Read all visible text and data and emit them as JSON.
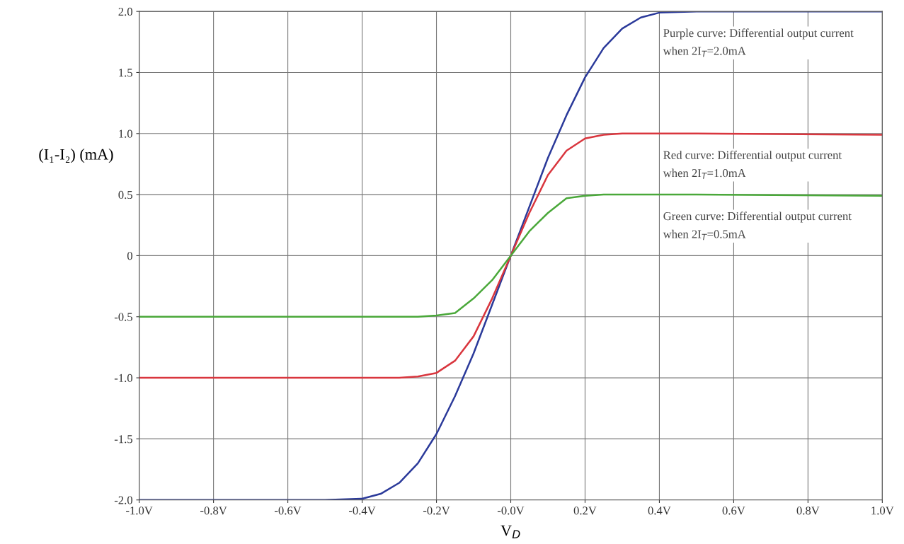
{
  "chart_data": {
    "type": "line",
    "xlabel": "V$_{D}$",
    "ylabel": "(I₁-I₂) (mA)",
    "x": [
      -1.0,
      -0.5,
      -0.4,
      -0.35,
      -0.3,
      -0.25,
      -0.2,
      -0.15,
      -0.1,
      -0.05,
      0.0,
      0.05,
      0.1,
      0.15,
      0.2,
      0.25,
      0.3,
      0.35,
      0.4,
      0.5,
      1.0
    ],
    "series": [
      {
        "color": "#2b3a9a",
        "values": [
          -2.0,
          -2.0,
          -1.99,
          -1.95,
          -1.86,
          -1.7,
          -1.46,
          -1.15,
          -0.8,
          -0.4,
          0.0,
          0.4,
          0.8,
          1.15,
          1.46,
          1.7,
          1.86,
          1.95,
          1.99,
          2.0,
          2.0
        ]
      },
      {
        "color": "#d9363e",
        "values": [
          -1.0,
          -1.0,
          -1.0,
          -1.0,
          -1.0,
          -0.99,
          -0.96,
          -0.86,
          -0.66,
          -0.35,
          0.0,
          0.35,
          0.66,
          0.86,
          0.96,
          0.99,
          1.0,
          1.0,
          1.0,
          1.0,
          0.99
        ]
      },
      {
        "color": "#4aa83a",
        "values": [
          -0.5,
          -0.5,
          -0.5,
          -0.5,
          -0.5,
          -0.5,
          -0.49,
          -0.47,
          -0.35,
          -0.2,
          0.0,
          0.2,
          0.35,
          0.47,
          0.49,
          0.5,
          0.5,
          0.5,
          0.5,
          0.5,
          0.49
        ]
      }
    ],
    "xlim": [
      -1.0,
      1.0
    ],
    "ylim": [
      -2.0,
      2.0
    ],
    "xticks": [
      {
        "value": -1.0,
        "label": "-1.0V"
      },
      {
        "value": -0.8,
        "label": "-0.8V"
      },
      {
        "value": -0.6,
        "label": "-0.6V"
      },
      {
        "value": -0.4,
        "label": "-0.4V"
      },
      {
        "value": -0.2,
        "label": "-0.2V"
      },
      {
        "value": 0.0,
        "label": "-0.0V"
      },
      {
        "value": 0.2,
        "label": "0.2V"
      },
      {
        "value": 0.4,
        "label": "0.4V"
      },
      {
        "value": 0.6,
        "label": "0.6V"
      },
      {
        "value": 0.8,
        "label": "0.8V"
      },
      {
        "value": 1.0,
        "label": "1.0V"
      }
    ],
    "yticks": [
      {
        "value": -2.0,
        "label": "-2.0"
      },
      {
        "value": -1.5,
        "label": "-1.5"
      },
      {
        "value": -1.0,
        "label": "-1.0"
      },
      {
        "value": -0.5,
        "label": "-0.5"
      },
      {
        "value": 0,
        "label": "0"
      },
      {
        "value": 0.5,
        "label": "0.5"
      },
      {
        "value": 1.0,
        "label": "1.0"
      },
      {
        "value": 1.5,
        "label": "1.5"
      },
      {
        "value": 2.0,
        "label": "2.0"
      }
    ],
    "grid": true,
    "annotations": [
      "Purple curve: Differential output current\nwhen 2I$_{T}$=2.0mA",
      "Red curve: Differential output current\nwhen 2I$_{T}$=1.0mA",
      "Green curve: Differential output current\nwhen 2I$_{T}$=0.5mA"
    ]
  }
}
